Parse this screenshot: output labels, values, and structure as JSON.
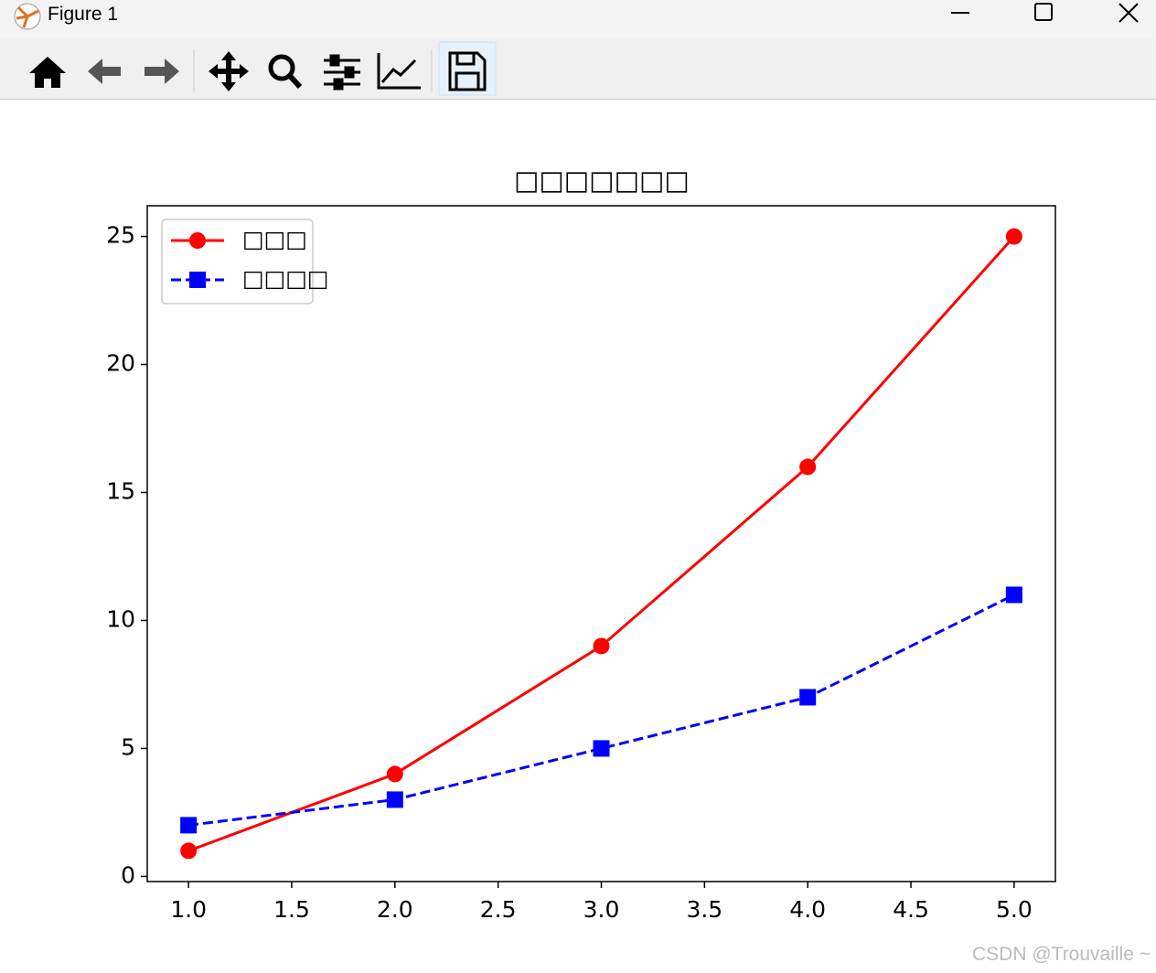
{
  "window": {
    "title": "Figure 1"
  },
  "watermark": "CSDN @Trouvaille ~",
  "chart_data": {
    "type": "line",
    "title": "□□□□□□□",
    "x": [
      1,
      2,
      3,
      4,
      5
    ],
    "series": [
      {
        "name": "□□□",
        "color": "#ff0000",
        "linestyle": "solid",
        "marker": "circle",
        "values": [
          1,
          4,
          9,
          16,
          25
        ]
      },
      {
        "name": "□□□□",
        "color": "#0000ff",
        "linestyle": "dashed",
        "marker": "square",
        "values": [
          2,
          3,
          5,
          7,
          11
        ]
      }
    ],
    "xlim": [
      0.8,
      5.2
    ],
    "xticks": [
      {
        "value": 1,
        "label": "1.0"
      },
      1.5,
      {
        "value": 2,
        "label": "2.0"
      },
      2.5,
      {
        "value": 3,
        "label": "3.0"
      },
      3.5,
      {
        "value": 4,
        "label": "4.0"
      },
      4.5,
      {
        "value": 5,
        "label": "5.0"
      }
    ],
    "ylim": [
      -0.2,
      26.2
    ],
    "yticks": [
      0,
      5,
      10,
      15,
      20,
      25
    ],
    "grid": false,
    "legend": "upper left"
  }
}
